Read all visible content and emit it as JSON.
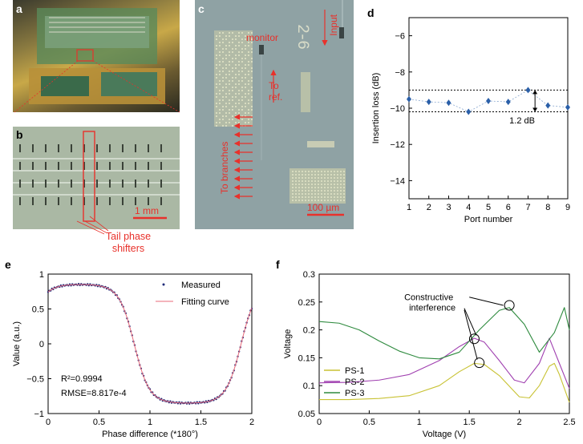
{
  "panels": {
    "a": {
      "label": "a"
    },
    "b": {
      "label": "b",
      "scale_bar": "1 mm",
      "annotation": "Tail phase\nshifters"
    },
    "c": {
      "label": "c",
      "monitor": "monitor",
      "input": "Input",
      "to_ref": "To\nref.",
      "to_branches": "To branches",
      "scale_bar": "100 µm",
      "chip_mark": "2-6"
    },
    "d": {
      "label": "d",
      "span_label": "1.2 dB"
    },
    "e": {
      "label": "e",
      "r2": "R²=0.9994",
      "rmse": "RMSE=8.817e-4"
    },
    "f": {
      "label": "f",
      "annotation": "Constructive\ninterference"
    }
  },
  "colors": {
    "red_annot": "#e8312b",
    "diamond": "#2a5fa8",
    "measured": "#1e2a78",
    "fit": "#e86a7a",
    "ps1": "#c8c233",
    "ps2": "#a040b0",
    "ps3": "#2e8a3e"
  },
  "chart_data": [
    {
      "id": "d",
      "type": "scatter",
      "xlabel": "Port number",
      "ylabel": "Insertion loss (dB)",
      "xlim": [
        1,
        9
      ],
      "ylim": [
        -15,
        -5
      ],
      "xticks": [
        1,
        2,
        3,
        4,
        5,
        6,
        7,
        8,
        9
      ],
      "yticks": [
        -6,
        -8,
        -10,
        -12,
        -14
      ],
      "x": [
        1,
        2,
        3,
        4,
        5,
        6,
        7,
        8,
        9
      ],
      "values": [
        -9.5,
        -9.65,
        -9.7,
        -10.2,
        -9.6,
        -9.65,
        -9.0,
        -9.85,
        -9.95
      ],
      "ref_lines": [
        -9.0,
        -10.2
      ]
    },
    {
      "id": "e",
      "type": "line",
      "xlabel": "Phase difference (*180°)",
      "ylabel": "Value (a.u.)",
      "xlim": [
        0,
        2
      ],
      "ylim": [
        -1,
        1
      ],
      "xticks": [
        0,
        0.5,
        1,
        1.5,
        2
      ],
      "yticks": [
        -1,
        -0.5,
        0,
        0.5,
        1
      ],
      "legend_position": "top-right",
      "series": [
        {
          "name": "Measured",
          "style": "dots"
        },
        {
          "name": "Fitting curve",
          "style": "line"
        }
      ],
      "model": {
        "amplitude": 0.85,
        "period": 2.1,
        "phase_peak": 0.32,
        "flatten": 2.2
      }
    },
    {
      "id": "f",
      "type": "line",
      "xlabel": "Voltage (V)",
      "ylabel": "Voltage",
      "xlim": [
        0,
        2.5
      ],
      "ylim": [
        0.05,
        0.3
      ],
      "xticks": [
        0,
        0.5,
        1,
        1.5,
        2,
        2.5
      ],
      "yticks": [
        0.05,
        0.1,
        0.15,
        0.2,
        0.25,
        0.3
      ],
      "legend_position": "lower-left",
      "series": [
        {
          "name": "PS-1",
          "x": [
            0,
            0.3,
            0.6,
            0.9,
            1.2,
            1.4,
            1.55,
            1.65,
            1.8,
            2.0,
            2.1,
            2.2,
            2.3,
            2.35,
            2.4,
            2.5
          ],
          "values": [
            0.075,
            0.075,
            0.077,
            0.082,
            0.1,
            0.125,
            0.14,
            0.138,
            0.118,
            0.08,
            0.078,
            0.1,
            0.135,
            0.14,
            0.12,
            0.07
          ]
        },
        {
          "name": "PS-2",
          "x": [
            0,
            0.3,
            0.6,
            0.9,
            1.2,
            1.4,
            1.55,
            1.65,
            1.8,
            1.95,
            2.05,
            2.2,
            2.3,
            2.4,
            2.5
          ],
          "values": [
            0.105,
            0.106,
            0.11,
            0.12,
            0.145,
            0.17,
            0.185,
            0.178,
            0.145,
            0.11,
            0.105,
            0.14,
            0.185,
            0.14,
            0.095
          ]
        },
        {
          "name": "PS-3",
          "x": [
            0,
            0.2,
            0.4,
            0.6,
            0.8,
            1.0,
            1.2,
            1.4,
            1.6,
            1.8,
            1.9,
            2.05,
            2.2,
            2.35,
            2.45,
            2.5
          ],
          "values": [
            0.215,
            0.212,
            0.2,
            0.18,
            0.162,
            0.15,
            0.148,
            0.16,
            0.2,
            0.235,
            0.24,
            0.21,
            0.16,
            0.195,
            0.24,
            0.2
          ]
        }
      ],
      "markers": [
        [
          1.6,
          0.141
        ],
        [
          1.55,
          0.184
        ],
        [
          1.9,
          0.244
        ]
      ]
    }
  ]
}
